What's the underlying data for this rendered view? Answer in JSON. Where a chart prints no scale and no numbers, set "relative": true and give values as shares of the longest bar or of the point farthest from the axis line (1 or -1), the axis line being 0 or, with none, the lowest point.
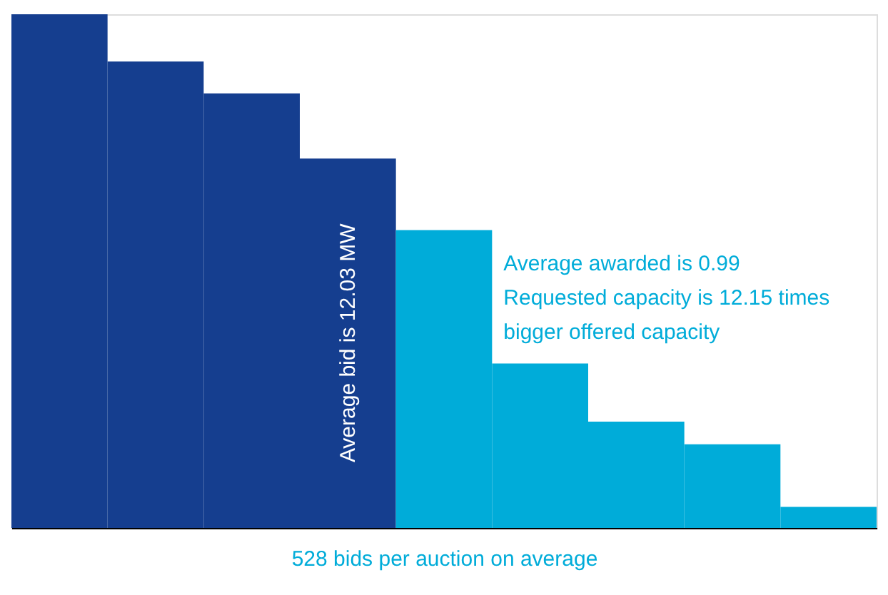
{
  "chart_data": {
    "type": "bar",
    "relative": true,
    "xlabel": "528 bids per auction on average",
    "categories": [
      null,
      null,
      null,
      null,
      null,
      null,
      null,
      null,
      null
    ],
    "values": [
      1,
      0.908,
      0.846,
      0.719,
      0.58,
      0.32,
      0.207,
      0.163,
      0.041
    ],
    "colors": [
      "#153e8f",
      "#153e8f",
      "#153e8f",
      "#153e8f",
      "#00acd9",
      "#00acd9",
      "#00acd9",
      "#00acd9",
      "#00acd9"
    ],
    "annotations": [
      "Average bid is 12.03 MW",
      "Average awarded is 0.99",
      "Requested capacity is 12.15 times",
      "bigger offered capacity"
    ],
    "grid": false,
    "legend": false
  }
}
